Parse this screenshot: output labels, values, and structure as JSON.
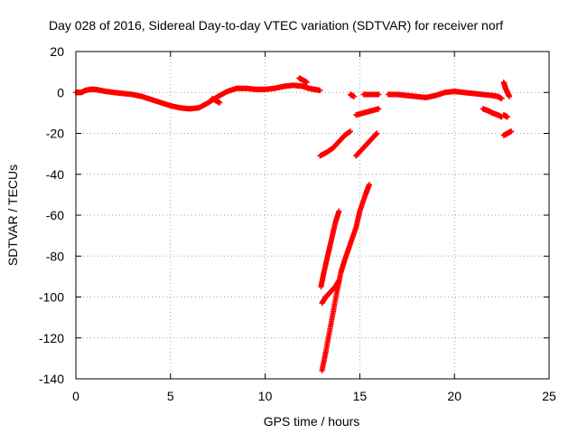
{
  "chart_data": {
    "type": "scatter",
    "title": "Day 028 of 2016, Sidereal Day-to-day VTEC variation (SDTVAR) for receiver norf",
    "xlabel": "GPS time / hours",
    "ylabel": "SDTVAR / TECUs",
    "xlim": [
      0,
      25
    ],
    "ylim": [
      -140,
      20
    ],
    "xticks": [
      0,
      5,
      10,
      15,
      20,
      25
    ],
    "yticks": [
      -140,
      -120,
      -100,
      -80,
      -60,
      -40,
      -20,
      0,
      20
    ],
    "grid": true,
    "marker": "+",
    "color": "#ff0000",
    "series": [
      {
        "values": [
          [
            0.0,
            0
          ],
          [
            0.3,
            0
          ],
          [
            0.5,
            1
          ],
          [
            0.8,
            1.5
          ],
          [
            1.0,
            1.5
          ],
          [
            1.3,
            1
          ],
          [
            1.6,
            0.5
          ],
          [
            2.0,
            0
          ],
          [
            2.5,
            -0.5
          ],
          [
            3.0,
            -1
          ],
          [
            3.5,
            -2
          ],
          [
            4.0,
            -3.5
          ],
          [
            4.5,
            -5
          ],
          [
            5.0,
            -6.5
          ],
          [
            5.5,
            -7.5
          ],
          [
            6.0,
            -8
          ],
          [
            6.5,
            -7.5
          ],
          [
            7.0,
            -5
          ],
          [
            7.5,
            -2
          ],
          [
            8.0,
            0.5
          ],
          [
            8.5,
            2
          ],
          [
            9.0,
            2
          ],
          [
            9.5,
            1.5
          ],
          [
            10.0,
            1.5
          ],
          [
            10.5,
            2
          ],
          [
            11.0,
            3
          ],
          [
            11.5,
            3.5
          ],
          [
            12.0,
            3
          ],
          [
            12.3,
            2
          ],
          [
            12.6,
            1.5
          ],
          [
            12.9,
            1
          ]
        ]
      },
      {
        "values": [
          [
            7.2,
            -3
          ],
          [
            7.4,
            -4
          ],
          [
            7.6,
            -5
          ]
        ]
      },
      {
        "values": [
          [
            11.8,
            7
          ],
          [
            12.0,
            6
          ],
          [
            12.2,
            5
          ]
        ]
      },
      {
        "values": [
          [
            14.5,
            -1
          ],
          [
            14.7,
            -2
          ]
        ]
      },
      {
        "values": [
          [
            15.2,
            -1
          ],
          [
            15.5,
            -1
          ],
          [
            15.8,
            -1
          ],
          [
            16.0,
            -1
          ]
        ]
      },
      {
        "values": [
          [
            16.5,
            -1
          ],
          [
            17.0,
            -1
          ],
          [
            17.5,
            -1.5
          ],
          [
            18.0,
            -2
          ],
          [
            18.5,
            -2.5
          ],
          [
            19.0,
            -1.5
          ],
          [
            19.5,
            0
          ],
          [
            20.0,
            0.5
          ],
          [
            20.5,
            0
          ],
          [
            21.0,
            -0.5
          ],
          [
            21.5,
            -1
          ],
          [
            22.0,
            -1.5
          ],
          [
            22.3,
            -2
          ],
          [
            22.5,
            -3
          ]
        ]
      },
      {
        "values": [
          [
            21.5,
            -8
          ],
          [
            21.8,
            -9
          ],
          [
            22.0,
            -10
          ],
          [
            22.3,
            -11
          ],
          [
            22.5,
            -12
          ]
        ]
      },
      {
        "values": [
          [
            22.6,
            5
          ],
          [
            22.7,
            2
          ],
          [
            22.8,
            0
          ],
          [
            22.9,
            -2
          ]
        ]
      },
      {
        "values": [
          [
            22.6,
            -11
          ],
          [
            22.8,
            -12
          ]
        ]
      },
      {
        "values": [
          [
            22.6,
            -21
          ],
          [
            22.8,
            -20
          ],
          [
            23.0,
            -19
          ]
        ]
      },
      {
        "values": [
          [
            12.9,
            -31
          ],
          [
            13.3,
            -29
          ],
          [
            13.6,
            -27
          ],
          [
            13.9,
            -24
          ],
          [
            14.2,
            -21
          ],
          [
            14.5,
            -19
          ]
        ]
      },
      {
        "values": [
          [
            14.8,
            -11
          ],
          [
            15.2,
            -10
          ],
          [
            15.6,
            -9
          ],
          [
            16.0,
            -8
          ]
        ]
      },
      {
        "values": [
          [
            14.8,
            -31
          ],
          [
            15.1,
            -28
          ],
          [
            15.4,
            -25
          ],
          [
            15.7,
            -22
          ],
          [
            15.9,
            -20
          ]
        ]
      },
      {
        "values": [
          [
            12.95,
            -95
          ],
          [
            13.1,
            -88
          ],
          [
            13.3,
            -80
          ],
          [
            13.5,
            -72
          ],
          [
            13.7,
            -64
          ],
          [
            13.9,
            -58
          ]
        ]
      },
      {
        "values": [
          [
            13.0,
            -103
          ],
          [
            13.2,
            -100
          ],
          [
            13.4,
            -98
          ],
          [
            13.7,
            -95
          ],
          [
            13.9,
            -92
          ]
        ]
      },
      {
        "values": [
          [
            13.0,
            -136
          ],
          [
            13.2,
            -127
          ],
          [
            13.4,
            -117
          ],
          [
            13.6,
            -107
          ],
          [
            13.8,
            -97
          ],
          [
            14.0,
            -88
          ],
          [
            14.2,
            -82
          ],
          [
            14.5,
            -74
          ],
          [
            14.8,
            -66
          ],
          [
            15.0,
            -58
          ],
          [
            15.3,
            -50
          ],
          [
            15.5,
            -45
          ]
        ]
      }
    ]
  }
}
